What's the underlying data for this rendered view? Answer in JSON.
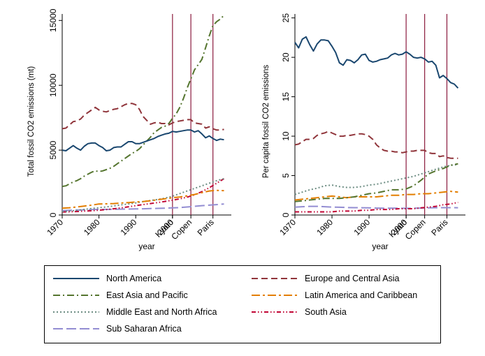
{
  "chart_data": [
    {
      "type": "line",
      "title": "",
      "xlabel": "year",
      "ylabel": "Total fossil CO2 emissions (mt)",
      "xlim": [
        1970,
        2016
      ],
      "ylim": [
        0,
        15500
      ],
      "x_ticks": [
        1970,
        1980,
        1990,
        2000
      ],
      "y_ticks": [
        0,
        5000,
        10000,
        15000
      ],
      "grid": false,
      "legend": "bottom",
      "event_lines": [
        {
          "label": "Kyoto",
          "x": 2000
        },
        {
          "label": "Copen",
          "x": 2005
        },
        {
          "label": "Paris",
          "x": 2011
        }
      ],
      "series": [
        {
          "name": "North America",
          "x": [
            1970,
            1971,
            1972,
            1973,
            1974,
            1975,
            1976,
            1977,
            1978,
            1979,
            1980,
            1981,
            1982,
            1983,
            1984,
            1985,
            1986,
            1987,
            1988,
            1989,
            1990,
            1991,
            1992,
            1993,
            1994,
            1995,
            1996,
            1997,
            1998,
            1999,
            2000,
            2001,
            2002,
            2003,
            2004,
            2005,
            2006,
            2007,
            2008,
            2009,
            2010,
            2011,
            2012,
            2013,
            2014
          ],
          "values": [
            5000,
            4950,
            5150,
            5350,
            5150,
            5000,
            5300,
            5500,
            5550,
            5550,
            5350,
            5200,
            4950,
            5000,
            5200,
            5250,
            5250,
            5450,
            5650,
            5650,
            5500,
            5500,
            5600,
            5700,
            5800,
            5900,
            6050,
            6150,
            6250,
            6300,
            6450,
            6400,
            6450,
            6500,
            6550,
            6550,
            6400,
            6500,
            6250,
            5950,
            6100,
            5900,
            5750,
            5850,
            5800
          ]
        },
        {
          "name": "Europe and Central Asia",
          "x": [
            1970,
            1971,
            1972,
            1973,
            1974,
            1975,
            1976,
            1977,
            1978,
            1979,
            1980,
            1981,
            1982,
            1983,
            1984,
            1985,
            1986,
            1987,
            1988,
            1989,
            1990,
            1991,
            1992,
            1993,
            1994,
            1995,
            1996,
            1997,
            1998,
            1999,
            2000,
            2001,
            2002,
            2003,
            2004,
            2005,
            2006,
            2007,
            2008,
            2009,
            2010,
            2011,
            2012,
            2013,
            2014
          ],
          "values": [
            6650,
            6700,
            6950,
            7200,
            7250,
            7400,
            7700,
            7900,
            8100,
            8300,
            8100,
            8000,
            7950,
            8050,
            8150,
            8200,
            8350,
            8500,
            8600,
            8600,
            8500,
            8150,
            7600,
            7300,
            7000,
            7100,
            7150,
            7050,
            7050,
            6950,
            7100,
            7200,
            7250,
            7300,
            7350,
            7350,
            7100,
            7050,
            7000,
            6700,
            6800,
            6650,
            6550,
            6550,
            6600
          ]
        },
        {
          "name": "East Asia and Pacific",
          "x": [
            1970,
            1971,
            1972,
            1973,
            1974,
            1975,
            1976,
            1977,
            1978,
            1979,
            1980,
            1981,
            1982,
            1983,
            1984,
            1985,
            1986,
            1987,
            1988,
            1989,
            1990,
            1991,
            1992,
            1993,
            1994,
            1995,
            1996,
            1997,
            1998,
            1999,
            2000,
            2001,
            2002,
            2003,
            2004,
            2005,
            2006,
            2007,
            2008,
            2009,
            2010,
            2011,
            2012,
            2013,
            2014
          ],
          "values": [
            2200,
            2250,
            2400,
            2550,
            2650,
            2800,
            3000,
            3150,
            3300,
            3400,
            3350,
            3400,
            3500,
            3600,
            3750,
            3950,
            4150,
            4350,
            4550,
            4750,
            4900,
            5100,
            5400,
            5700,
            6000,
            6350,
            6550,
            6750,
            6850,
            7050,
            7450,
            7800,
            8300,
            9000,
            9800,
            10500,
            11200,
            11600,
            12000,
            12900,
            13800,
            14600,
            14900,
            15100,
            15400
          ]
        },
        {
          "name": "Latin America and Caribbean",
          "x": [
            1970,
            1972,
            1974,
            1976,
            1978,
            1980,
            1982,
            1984,
            1986,
            1988,
            1990,
            1992,
            1994,
            1996,
            1998,
            2000,
            2002,
            2004,
            2006,
            2008,
            2010,
            2012,
            2014
          ],
          "values": [
            520,
            560,
            620,
            690,
            760,
            850,
            860,
            880,
            920,
            960,
            1000,
            1040,
            1100,
            1180,
            1250,
            1330,
            1390,
            1480,
            1580,
            1720,
            1850,
            1900,
            1880
          ]
        },
        {
          "name": "Middle East and North Africa",
          "x": [
            1970,
            1972,
            1974,
            1976,
            1978,
            1980,
            1982,
            1984,
            1986,
            1988,
            1990,
            1992,
            1994,
            1996,
            1998,
            2000,
            2002,
            2004,
            2006,
            2008,
            2010,
            2012,
            2014
          ],
          "values": [
            260,
            300,
            360,
            430,
            500,
            560,
            620,
            700,
            780,
            850,
            930,
            1030,
            1120,
            1200,
            1300,
            1450,
            1650,
            1850,
            2050,
            2250,
            2450,
            2650,
            2800
          ]
        },
        {
          "name": "South Asia",
          "x": [
            1970,
            1972,
            1974,
            1976,
            1978,
            1980,
            1982,
            1984,
            1986,
            1988,
            1990,
            1992,
            1994,
            1996,
            1998,
            2000,
            2002,
            2004,
            2006,
            2008,
            2010,
            2012,
            2014
          ],
          "values": [
            230,
            250,
            270,
            300,
            330,
            370,
            420,
            480,
            550,
            630,
            720,
            800,
            880,
            960,
            1050,
            1140,
            1250,
            1380,
            1560,
            1800,
            2100,
            2450,
            2800
          ]
        },
        {
          "name": "Sub Saharan Africa",
          "x": [
            1970,
            1972,
            1974,
            1976,
            1978,
            1980,
            1982,
            1984,
            1986,
            1988,
            1990,
            1992,
            1994,
            1996,
            1998,
            2000,
            2002,
            2004,
            2006,
            2008,
            2010,
            2012,
            2014
          ],
          "values": [
            340,
            360,
            380,
            400,
            420,
            430,
            430,
            440,
            450,
            460,
            470,
            480,
            500,
            510,
            530,
            550,
            570,
            620,
            670,
            720,
            760,
            800,
            850
          ]
        }
      ]
    },
    {
      "type": "line",
      "title": "",
      "xlabel": "year",
      "ylabel": "Per capita fossil CO2 emissions",
      "xlim": [
        1970,
        2016
      ],
      "ylim": [
        0,
        25.5
      ],
      "x_ticks": [
        1970,
        1980,
        1990,
        2000
      ],
      "y_ticks": [
        0,
        5,
        10,
        15,
        20,
        25
      ],
      "grid": false,
      "legend": "bottom",
      "event_lines": [
        {
          "label": "Kyoto",
          "x": 2000
        },
        {
          "label": "Copen",
          "x": 2005
        },
        {
          "label": "Paris",
          "x": 2011
        }
      ],
      "series": [
        {
          "name": "North America",
          "x": [
            1970,
            1971,
            1972,
            1973,
            1974,
            1975,
            1976,
            1977,
            1978,
            1979,
            1980,
            1981,
            1982,
            1983,
            1984,
            1985,
            1986,
            1987,
            1988,
            1989,
            1990,
            1991,
            1992,
            1993,
            1994,
            1995,
            1996,
            1997,
            1998,
            1999,
            2000,
            2001,
            2002,
            2003,
            2004,
            2005,
            2006,
            2007,
            2008,
            2009,
            2010,
            2011,
            2012,
            2013,
            2014
          ],
          "values": [
            21.9,
            21.2,
            22.3,
            22.6,
            21.6,
            20.8,
            21.7,
            22.2,
            22.2,
            22.1,
            21.4,
            20.6,
            19.3,
            19.0,
            19.7,
            19.6,
            19.3,
            19.7,
            20.3,
            20.4,
            19.6,
            19.4,
            19.5,
            19.7,
            19.8,
            19.9,
            20.3,
            20.5,
            20.3,
            20.4,
            20.7,
            20.4,
            20.0,
            19.9,
            20.0,
            19.8,
            19.4,
            19.5,
            19.0,
            17.4,
            17.7,
            17.3,
            16.8,
            16.6,
            16.1
          ]
        },
        {
          "name": "Europe and Central Asia",
          "x": [
            1970,
            1971,
            1972,
            1973,
            1974,
            1975,
            1976,
            1977,
            1978,
            1979,
            1980,
            1981,
            1982,
            1983,
            1984,
            1985,
            1986,
            1987,
            1988,
            1989,
            1990,
            1991,
            1992,
            1993,
            1994,
            1995,
            1996,
            1997,
            1998,
            1999,
            2000,
            2001,
            2002,
            2003,
            2004,
            2005,
            2006,
            2007,
            2008,
            2009,
            2010,
            2011,
            2012,
            2013,
            2014
          ],
          "values": [
            8.9,
            9.0,
            9.3,
            9.6,
            9.6,
            9.7,
            10.1,
            10.3,
            10.4,
            10.6,
            10.4,
            10.2,
            10.0,
            10.0,
            10.1,
            10.1,
            10.2,
            10.3,
            10.3,
            10.2,
            10.0,
            9.6,
            8.9,
            8.5,
            8.2,
            8.1,
            8.1,
            8.0,
            8.0,
            7.9,
            8.0,
            8.1,
            8.1,
            8.2,
            8.2,
            8.2,
            7.9,
            7.8,
            7.8,
            7.4,
            7.5,
            7.3,
            7.2,
            7.2,
            7.2
          ]
        },
        {
          "name": "East Asia and Pacific",
          "x": [
            1970,
            1972,
            1974,
            1976,
            1978,
            1980,
            1982,
            1984,
            1986,
            1988,
            1990,
            1992,
            1994,
            1996,
            1998,
            2000,
            2002,
            2004,
            2006,
            2008,
            2010,
            2012,
            2014
          ],
          "values": [
            1.7,
            1.8,
            1.9,
            2.0,
            2.1,
            2.1,
            2.1,
            2.2,
            2.3,
            2.5,
            2.7,
            2.8,
            3.0,
            3.2,
            3.2,
            3.3,
            3.7,
            4.4,
            5.2,
            5.6,
            5.9,
            6.3,
            6.5
          ]
        },
        {
          "name": "Latin America and Caribbean",
          "x": [
            1970,
            1972,
            1974,
            1976,
            1978,
            1980,
            1982,
            1984,
            1986,
            1988,
            1990,
            1992,
            1994,
            1996,
            1998,
            2000,
            2002,
            2004,
            2006,
            2008,
            2010,
            2012,
            2014
          ],
          "values": [
            1.9,
            2.0,
            2.1,
            2.2,
            2.3,
            2.4,
            2.3,
            2.2,
            2.3,
            2.3,
            2.3,
            2.3,
            2.4,
            2.5,
            2.5,
            2.6,
            2.6,
            2.7,
            2.7,
            2.8,
            2.9,
            3.0,
            2.9
          ]
        },
        {
          "name": "Middle East and North Africa",
          "x": [
            1970,
            1972,
            1974,
            1976,
            1978,
            1980,
            1982,
            1984,
            1986,
            1988,
            1990,
            1992,
            1994,
            1996,
            1998,
            2000,
            2002,
            2004,
            2006,
            2008,
            2010,
            2012,
            2014
          ],
          "values": [
            2.6,
            2.9,
            3.2,
            3.4,
            3.7,
            3.8,
            3.6,
            3.5,
            3.5,
            3.6,
            3.8,
            3.9,
            4.1,
            4.3,
            4.5,
            4.7,
            4.9,
            5.2,
            5.5,
            5.8,
            6.1,
            6.3,
            6.4
          ]
        },
        {
          "name": "South Asia",
          "x": [
            1970,
            1972,
            1974,
            1976,
            1978,
            1980,
            1982,
            1984,
            1986,
            1988,
            1990,
            1992,
            1994,
            1996,
            1998,
            2000,
            2002,
            2004,
            2006,
            2008,
            2010,
            2012,
            2014
          ],
          "values": [
            0.4,
            0.4,
            0.4,
            0.4,
            0.4,
            0.4,
            0.5,
            0.5,
            0.5,
            0.6,
            0.6,
            0.7,
            0.7,
            0.7,
            0.8,
            0.8,
            0.8,
            0.9,
            1.0,
            1.1,
            1.3,
            1.4,
            1.6
          ]
        },
        {
          "name": "Sub Saharan Africa",
          "x": [
            1970,
            1972,
            1974,
            1976,
            1978,
            1980,
            1982,
            1984,
            1986,
            1988,
            1990,
            1992,
            1994,
            1996,
            1998,
            2000,
            2002,
            2004,
            2006,
            2008,
            2010,
            2012,
            2014
          ],
          "values": [
            1.0,
            1.05,
            1.1,
            1.1,
            1.05,
            1.0,
            0.98,
            0.95,
            0.93,
            0.92,
            0.9,
            0.88,
            0.87,
            0.86,
            0.86,
            0.85,
            0.86,
            0.88,
            0.9,
            0.92,
            0.93,
            0.93,
            0.92
          ]
        }
      ]
    }
  ],
  "legend": {
    "items": [
      {
        "name": "North America",
        "color": "#1a476f",
        "dash": "",
        "width": 2
      },
      {
        "name": "Europe and Central Asia",
        "color": "#90353b",
        "dash": "9,5",
        "width": 2
      },
      {
        "name": "East Asia and Pacific",
        "color": "#55752f",
        "dash": "10,4,2,4",
        "width": 2
      },
      {
        "name": "Latin America and Caribbean",
        "color": "#e37e00",
        "dash": "12,4,3,4",
        "width": 2
      },
      {
        "name": "Middle East and North Africa",
        "color": "#6e8e84",
        "dash": "2,3",
        "width": 2
      },
      {
        "name": "South Asia",
        "color": "#c10534",
        "dash": "6,3,1.5,3,1.5,3",
        "width": 2
      },
      {
        "name": "Sub Saharan Africa",
        "color": "#938dd2",
        "dash": "14,5",
        "width": 2
      }
    ]
  },
  "event_line_color": "#8b1a3d"
}
